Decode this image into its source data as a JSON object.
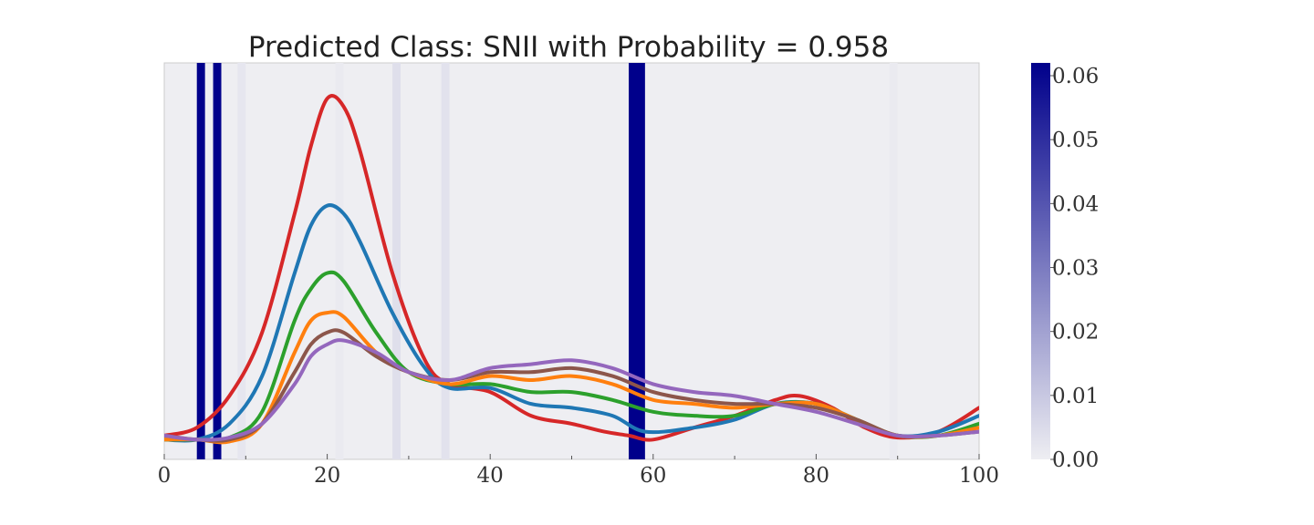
{
  "chart_data": {
    "type": "line",
    "title": "Predicted Class: SNII with Probability = 0.958",
    "xlabel": "",
    "ylabel": "",
    "xlim": [
      0,
      100
    ],
    "xticks": [
      0,
      20,
      40,
      60,
      80,
      100
    ],
    "xtick_labels": [
      "0",
      "20",
      "40",
      "60",
      "80",
      "100"
    ],
    "y_axis_visible": false,
    "grid": false,
    "legend": "none",
    "background": "#eeeef2",
    "series": [
      {
        "color": "#d62728",
        "points": [
          [
            0,
            0.06
          ],
          [
            4,
            0.08
          ],
          [
            8,
            0.16
          ],
          [
            12,
            0.32
          ],
          [
            16,
            0.62
          ],
          [
            18,
            0.79
          ],
          [
            20,
            0.91
          ],
          [
            22,
            0.89
          ],
          [
            24,
            0.78
          ],
          [
            28,
            0.47
          ],
          [
            32,
            0.25
          ],
          [
            35,
            0.19
          ],
          [
            40,
            0.17
          ],
          [
            45,
            0.11
          ],
          [
            50,
            0.09
          ],
          [
            54,
            0.07
          ],
          [
            57,
            0.06
          ],
          [
            60,
            0.05
          ],
          [
            65,
            0.08
          ],
          [
            70,
            0.11
          ],
          [
            75,
            0.15
          ],
          [
            78,
            0.16
          ],
          [
            82,
            0.13
          ],
          [
            86,
            0.08
          ],
          [
            90,
            0.055
          ],
          [
            95,
            0.07
          ],
          [
            100,
            0.13
          ]
        ]
      },
      {
        "color": "#1f77b4",
        "points": [
          [
            0,
            0.05
          ],
          [
            4,
            0.05
          ],
          [
            8,
            0.09
          ],
          [
            12,
            0.21
          ],
          [
            16,
            0.47
          ],
          [
            18,
            0.59
          ],
          [
            20,
            0.64
          ],
          [
            22,
            0.62
          ],
          [
            24,
            0.55
          ],
          [
            28,
            0.37
          ],
          [
            32,
            0.23
          ],
          [
            35,
            0.18
          ],
          [
            40,
            0.18
          ],
          [
            45,
            0.14
          ],
          [
            50,
            0.13
          ],
          [
            55,
            0.11
          ],
          [
            59,
            0.07
          ],
          [
            65,
            0.08
          ],
          [
            70,
            0.1
          ],
          [
            75,
            0.14
          ],
          [
            80,
            0.14
          ],
          [
            85,
            0.1
          ],
          [
            90,
            0.06
          ],
          [
            95,
            0.07
          ],
          [
            100,
            0.11
          ]
        ]
      },
      {
        "color": "#2ca02c",
        "points": [
          [
            0,
            0.05
          ],
          [
            4,
            0.05
          ],
          [
            8,
            0.055
          ],
          [
            12,
            0.12
          ],
          [
            16,
            0.35
          ],
          [
            18,
            0.43
          ],
          [
            20,
            0.47
          ],
          [
            22,
            0.45
          ],
          [
            26,
            0.32
          ],
          [
            30,
            0.22
          ],
          [
            35,
            0.19
          ],
          [
            40,
            0.19
          ],
          [
            45,
            0.17
          ],
          [
            50,
            0.17
          ],
          [
            55,
            0.15
          ],
          [
            60,
            0.12
          ],
          [
            65,
            0.11
          ],
          [
            70,
            0.11
          ],
          [
            75,
            0.14
          ],
          [
            80,
            0.14
          ],
          [
            85,
            0.1
          ],
          [
            90,
            0.06
          ],
          [
            95,
            0.06
          ],
          [
            100,
            0.09
          ]
        ]
      },
      {
        "color": "#ff7f0e",
        "points": [
          [
            0,
            0.05
          ],
          [
            4,
            0.05
          ],
          [
            8,
            0.045
          ],
          [
            12,
            0.09
          ],
          [
            16,
            0.27
          ],
          [
            18,
            0.35
          ],
          [
            20,
            0.37
          ],
          [
            22,
            0.36
          ],
          [
            26,
            0.27
          ],
          [
            30,
            0.22
          ],
          [
            35,
            0.19
          ],
          [
            40,
            0.21
          ],
          [
            45,
            0.2
          ],
          [
            50,
            0.21
          ],
          [
            55,
            0.19
          ],
          [
            60,
            0.15
          ],
          [
            65,
            0.14
          ],
          [
            70,
            0.13
          ],
          [
            75,
            0.14
          ],
          [
            80,
            0.14
          ],
          [
            85,
            0.1
          ],
          [
            90,
            0.06
          ],
          [
            95,
            0.06
          ],
          [
            100,
            0.08
          ]
        ]
      },
      {
        "color": "#8c564b",
        "points": [
          [
            0,
            0.06
          ],
          [
            4,
            0.05
          ],
          [
            8,
            0.05
          ],
          [
            12,
            0.09
          ],
          [
            16,
            0.22
          ],
          [
            18,
            0.29
          ],
          [
            20,
            0.32
          ],
          [
            22,
            0.32
          ],
          [
            26,
            0.26
          ],
          [
            30,
            0.22
          ],
          [
            35,
            0.2
          ],
          [
            40,
            0.22
          ],
          [
            45,
            0.22
          ],
          [
            50,
            0.23
          ],
          [
            55,
            0.21
          ],
          [
            60,
            0.17
          ],
          [
            65,
            0.15
          ],
          [
            70,
            0.14
          ],
          [
            75,
            0.14
          ],
          [
            80,
            0.13
          ],
          [
            85,
            0.1
          ],
          [
            90,
            0.06
          ],
          [
            95,
            0.06
          ],
          [
            100,
            0.07
          ]
        ]
      },
      {
        "color": "#9467bd",
        "points": [
          [
            0,
            0.06
          ],
          [
            4,
            0.05
          ],
          [
            8,
            0.055
          ],
          [
            12,
            0.09
          ],
          [
            16,
            0.19
          ],
          [
            18,
            0.26
          ],
          [
            20,
            0.29
          ],
          [
            22,
            0.3
          ],
          [
            26,
            0.27
          ],
          [
            30,
            0.22
          ],
          [
            35,
            0.2
          ],
          [
            40,
            0.23
          ],
          [
            45,
            0.24
          ],
          [
            50,
            0.25
          ],
          [
            55,
            0.23
          ],
          [
            60,
            0.19
          ],
          [
            65,
            0.17
          ],
          [
            70,
            0.16
          ],
          [
            75,
            0.14
          ],
          [
            80,
            0.12
          ],
          [
            85,
            0.09
          ],
          [
            90,
            0.06
          ],
          [
            95,
            0.06
          ],
          [
            100,
            0.07
          ]
        ]
      }
    ],
    "attention_bands": [
      {
        "x_start": 4,
        "x_end": 5,
        "value": 0.062
      },
      {
        "x_start": 6,
        "x_end": 7,
        "value": 0.062
      },
      {
        "x_start": 9,
        "x_end": 10,
        "value": 0.002
      },
      {
        "x_start": 21,
        "x_end": 22,
        "value": 0.001
      },
      {
        "x_start": 28,
        "x_end": 29,
        "value": 0.004
      },
      {
        "x_start": 34,
        "x_end": 35,
        "value": 0.003
      },
      {
        "x_start": 57,
        "x_end": 59,
        "value": 0.062
      },
      {
        "x_start": 89,
        "x_end": 90,
        "value": 0.001
      }
    ],
    "colorbar": {
      "min": 0.0,
      "max": 0.062,
      "ticks": [
        0.0,
        0.01,
        0.02,
        0.03,
        0.04,
        0.05,
        0.06
      ],
      "tick_labels": [
        "0.00",
        "0.01",
        "0.02",
        "0.03",
        "0.04",
        "0.05",
        "0.06"
      ],
      "color_low": "#eeeef2",
      "color_high": "#00008b"
    }
  }
}
